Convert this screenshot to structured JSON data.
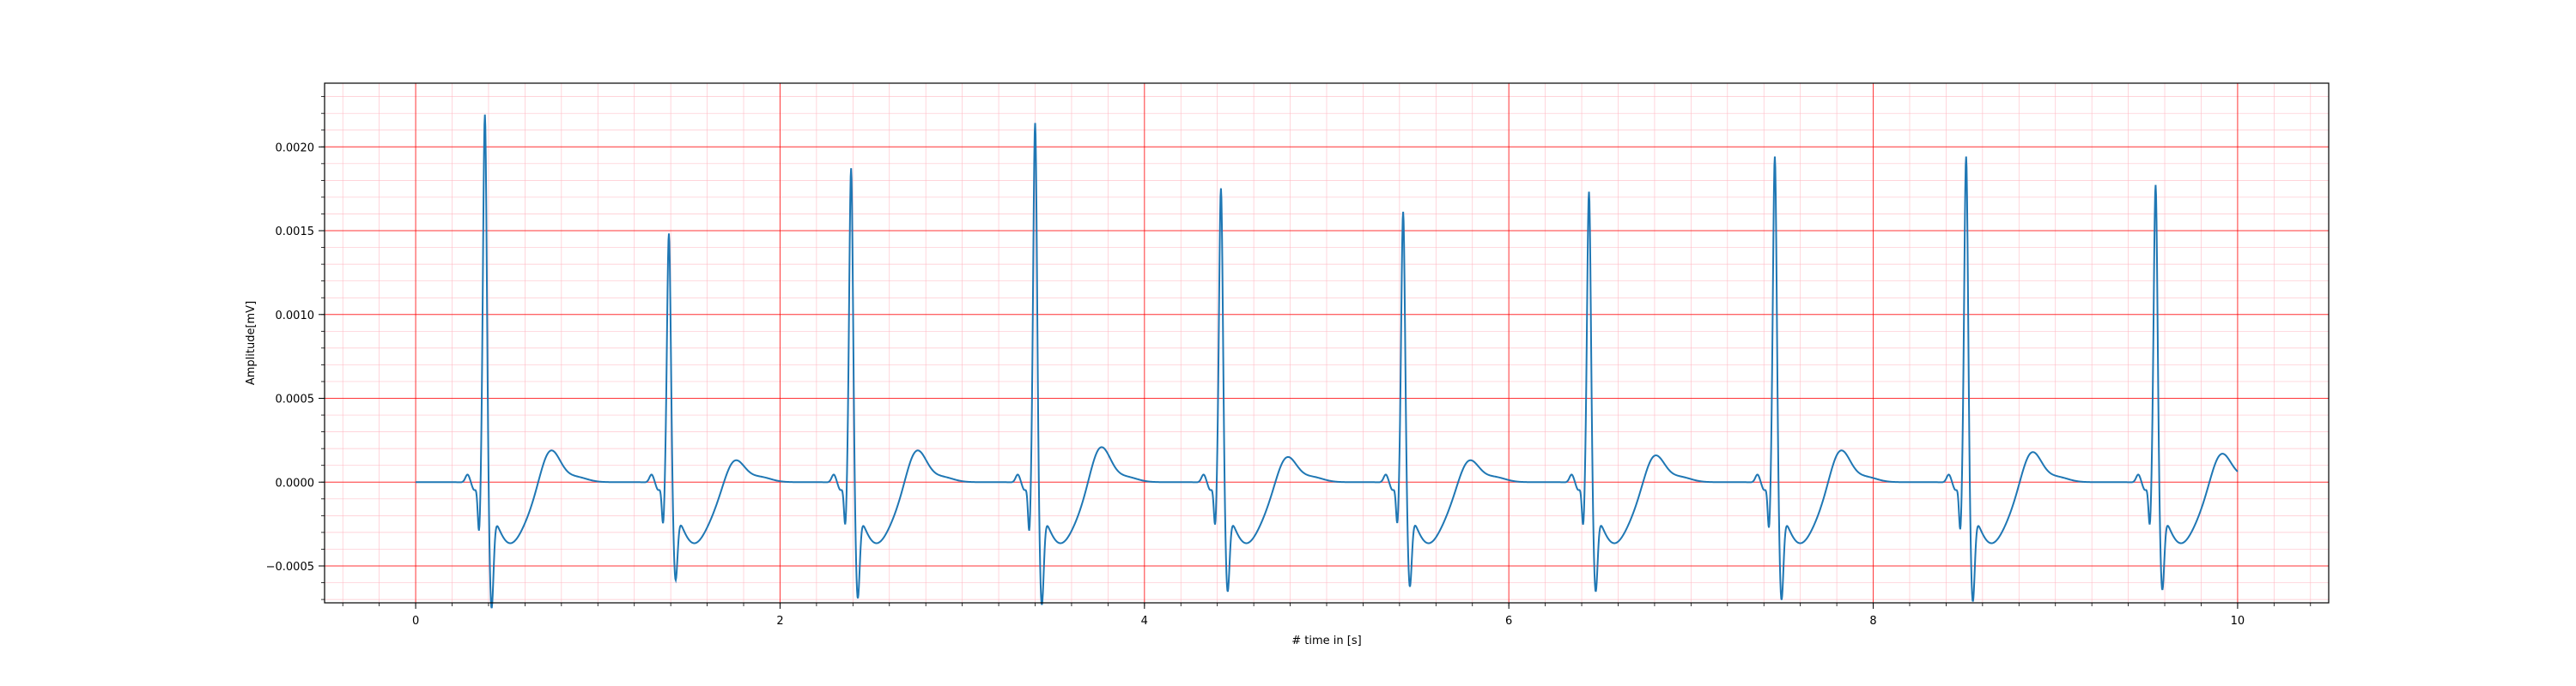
{
  "chart_data": {
    "type": "line",
    "title": "",
    "xlabel": "# time in [s]",
    "ylabel": "Amplitude[mV]",
    "xlim": [
      -0.5,
      10.5
    ],
    "ylim": [
      -0.00072,
      0.00238
    ],
    "x_ticks": [
      0,
      2,
      4,
      6,
      8,
      10
    ],
    "x_tick_labels": [
      "0",
      "2",
      "4",
      "6",
      "8",
      "10"
    ],
    "y_ticks": [
      -0.0005,
      0.0,
      0.0005,
      0.001,
      0.0015,
      0.002
    ],
    "y_tick_labels": [
      "−0.0005",
      "0.0000",
      "0.0005",
      "0.0010",
      "0.0015",
      "0.0020"
    ],
    "grid": {
      "major": "on",
      "minor": "on",
      "major_color": "#ff0000",
      "minor_color": "#ffb6c1"
    },
    "legend": "none",
    "line_color": "#1f77b4",
    "x_range": [
      0,
      10
    ],
    "beats": [
      {
        "r_time": 0.38,
        "r_peak": 0.00225,
        "s_min": -0.00057,
        "pre_dip": -0.00027,
        "t_peak": 0.00017
      },
      {
        "r_time": 1.39,
        "r_peak": 0.00154,
        "s_min": -0.0004,
        "pre_dip": -0.00022,
        "t_peak": 0.00011
      },
      {
        "r_time": 2.39,
        "r_peak": 0.00193,
        "s_min": -0.00051,
        "pre_dip": -0.00023,
        "t_peak": 0.00017
      },
      {
        "r_time": 3.4,
        "r_peak": 0.0022,
        "s_min": -0.00055,
        "pre_dip": -0.00027,
        "t_peak": 0.00019
      },
      {
        "r_time": 4.42,
        "r_peak": 0.00181,
        "s_min": -0.00047,
        "pre_dip": -0.00023,
        "t_peak": 0.00013
      },
      {
        "r_time": 5.42,
        "r_peak": 0.00167,
        "s_min": -0.00044,
        "pre_dip": -0.00022,
        "t_peak": 0.00011
      },
      {
        "r_time": 6.44,
        "r_peak": 0.00179,
        "s_min": -0.00047,
        "pre_dip": -0.00023,
        "t_peak": 0.00014
      },
      {
        "r_time": 7.46,
        "r_peak": 0.002,
        "s_min": -0.00052,
        "pre_dip": -0.00025,
        "t_peak": 0.00017
      },
      {
        "r_time": 8.51,
        "r_peak": 0.002,
        "s_min": -0.00053,
        "pre_dip": -0.00026,
        "t_peak": 0.00016
      },
      {
        "r_time": 9.55,
        "r_peak": 0.00183,
        "s_min": -0.00046,
        "pre_dip": -0.00023,
        "t_peak": 0.00015
      }
    ]
  }
}
